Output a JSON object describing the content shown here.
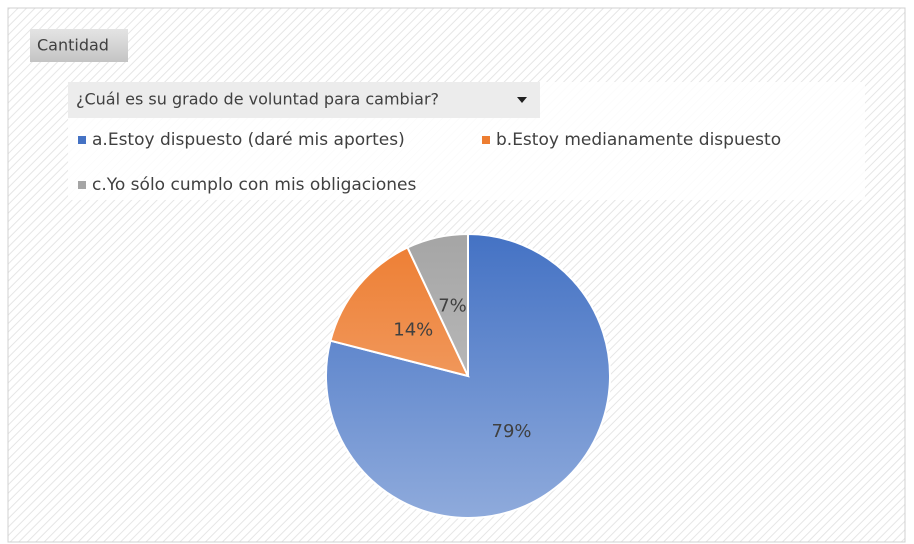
{
  "chart_data": {
    "type": "pie",
    "field_button": "Cantidad",
    "filter_button": "¿Cuál es su grado de voluntad para cambiar?",
    "categories": [
      "a.Estoy dispuesto (daré mis aportes)",
      "b.Estoy medianamente dispuesto",
      "c.Yo sólo cumplo con mis obligaciones"
    ],
    "values": [
      79,
      14,
      7
    ],
    "value_labels": [
      "79%",
      "14%",
      "7%"
    ],
    "colors": [
      "#4472c4",
      "#ed7d31",
      "#a5a5a5"
    ]
  }
}
